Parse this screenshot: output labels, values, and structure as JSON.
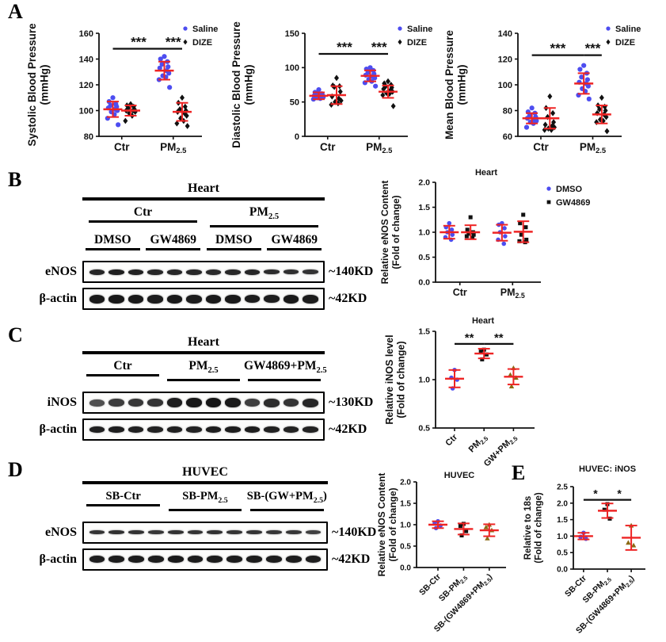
{
  "panels": {
    "A": "A",
    "B": "B",
    "C": "C",
    "D": "D",
    "E": "E"
  },
  "colors": {
    "error_bar": "#ee2424",
    "saline_blue": "#4d4df0",
    "black": "#111111",
    "brown": "#8B6914"
  },
  "chart_data": [
    {
      "id": "c-a1",
      "type": "scatter",
      "title": "",
      "ylabel": [
        "Systolic Blood Pressure",
        "(mmHg)"
      ],
      "ylim": [
        80,
        160
      ],
      "yticks": [
        "80",
        "100",
        "120",
        "140",
        "160"
      ],
      "categories": [
        {
          "label": "Ctr",
          "fr": 0.23
        },
        {
          "label": "PM|2.5",
          "fr": 0.75
        }
      ],
      "legend": [
        {
          "label": "Saline",
          "marker": "circle",
          "color": "#4d4df0"
        },
        {
          "label": "DIZE",
          "marker": "diamond",
          "color": "#111111"
        }
      ],
      "legend_position": "right",
      "grid": false,
      "groups": [
        {
          "cat": 0,
          "off": -0.09,
          "marker": "circle",
          "color": "#4d4df0",
          "values": [
            110,
            107,
            105,
            104,
            103,
            102,
            101,
            100,
            99,
            97,
            94,
            89
          ],
          "mean": 101,
          "sd": 6
        },
        {
          "cat": 0,
          "off": 0.09,
          "marker": "diamond",
          "color": "#111111",
          "values": [
            105,
            104,
            103,
            102,
            101,
            100,
            100,
            99,
            98,
            96,
            92
          ],
          "mean": 100,
          "sd": 4
        },
        {
          "cat": 1,
          "off": -0.09,
          "marker": "circle",
          "color": "#4d4df0",
          "values": [
            142,
            140,
            138,
            136,
            134,
            133,
            131,
            129,
            127,
            126,
            124,
            118
          ],
          "mean": 131,
          "sd": 7
        },
        {
          "cat": 1,
          "off": 0.09,
          "marker": "diamond",
          "color": "#111111",
          "values": [
            110,
            106,
            103,
            101,
            100,
            99,
            98,
            96,
            94,
            92,
            90,
            88
          ],
          "mean": 99,
          "sd": 7
        }
      ],
      "sig": [
        {
          "g1": 0,
          "g2": 2,
          "y": 148,
          "label": "***"
        },
        {
          "g1": 2,
          "g2": 3,
          "y": 148,
          "label": "***"
        }
      ]
    },
    {
      "id": "c-a2",
      "type": "scatter",
      "title": "",
      "ylabel": [
        "Diastolic Blood Pressure",
        "(mmHg)"
      ],
      "ylim": [
        0,
        150
      ],
      "yticks": [
        "0",
        "50",
        "100",
        "150"
      ],
      "categories": [
        {
          "label": "Ctr",
          "fr": 0.23
        },
        {
          "label": "PM|2.5",
          "fr": 0.75
        }
      ],
      "legend": [
        {
          "label": "Saline",
          "marker": "circle",
          "color": "#4d4df0"
        },
        {
          "label": "DIZE",
          "marker": "diamond",
          "color": "#111111"
        }
      ],
      "legend_position": "right",
      "grid": false,
      "groups": [
        {
          "cat": 0,
          "off": -0.09,
          "marker": "circle",
          "color": "#4d4df0",
          "values": [
            68,
            64,
            62,
            61,
            60,
            59,
            58,
            57,
            56,
            55,
            54
          ],
          "mean": 59,
          "sd": 5
        },
        {
          "cat": 0,
          "off": 0.09,
          "marker": "diamond",
          "color": "#111111",
          "values": [
            85,
            74,
            73,
            72,
            65,
            58,
            55,
            52,
            50,
            48,
            46
          ],
          "mean": 60,
          "sd": 13
        },
        {
          "cat": 1,
          "off": -0.09,
          "marker": "circle",
          "color": "#4d4df0",
          "values": [
            100,
            98,
            96,
            93,
            91,
            89,
            87,
            85,
            83,
            80,
            78,
            73
          ],
          "mean": 88,
          "sd": 8
        },
        {
          "cat": 1,
          "off": 0.09,
          "marker": "diamond",
          "color": "#111111",
          "values": [
            80,
            77,
            75,
            73,
            71,
            69,
            67,
            65,
            63,
            62,
            60,
            44
          ],
          "mean": 65,
          "sd": 9
        }
      ],
      "sig": [
        {
          "g1": 0,
          "g2": 2,
          "y": 120,
          "label": "***"
        },
        {
          "g1": 2,
          "g2": 3,
          "y": 120,
          "label": "***"
        }
      ]
    },
    {
      "id": "c-a3",
      "type": "scatter",
      "title": "",
      "ylabel": [
        "Mean Blood Pressure",
        "(mmHg)"
      ],
      "ylim": [
        60,
        140
      ],
      "yticks": [
        "60",
        "80",
        "100",
        "120",
        "140"
      ],
      "categories": [
        {
          "label": "Ctr",
          "fr": 0.23
        },
        {
          "label": "PM|2.5",
          "fr": 0.75
        }
      ],
      "legend": [
        {
          "label": "Saline",
          "marker": "circle",
          "color": "#4d4df0"
        },
        {
          "label": "DIZE",
          "marker": "diamond",
          "color": "#111111"
        }
      ],
      "legend_position": "right",
      "grid": false,
      "groups": [
        {
          "cat": 0,
          "off": -0.09,
          "marker": "circle",
          "color": "#4d4df0",
          "values": [
            82,
            79,
            78,
            76,
            75,
            74,
            73,
            72,
            71,
            70,
            67
          ],
          "mean": 74,
          "sd": 4
        },
        {
          "cat": 0,
          "off": 0.09,
          "marker": "diamond",
          "color": "#111111",
          "values": [
            91,
            82,
            78,
            75,
            71,
            69,
            68,
            67,
            66,
            65,
            65
          ],
          "mean": 74,
          "sd": 8
        },
        {
          "cat": 1,
          "off": -0.09,
          "marker": "circle",
          "color": "#4d4df0",
          "values": [
            115,
            112,
            109,
            106,
            104,
            102,
            101,
            99,
            97,
            95,
            92,
            89
          ],
          "mean": 101,
          "sd": 8
        },
        {
          "cat": 1,
          "off": 0.09,
          "marker": "diamond",
          "color": "#111111",
          "values": [
            90,
            84,
            83,
            81,
            80,
            78,
            77,
            75,
            73,
            72,
            71,
            64
          ],
          "mean": 77,
          "sd": 7
        }
      ],
      "sig": [
        {
          "g1": 0,
          "g2": 2,
          "y": 123,
          "label": "***"
        },
        {
          "g1": 2,
          "g2": 3,
          "y": 123,
          "label": "***"
        }
      ]
    },
    {
      "id": "c-b",
      "type": "scatter",
      "title": "Heart",
      "ylabel": [
        "Relative eNOS Content",
        "(Fold of change)"
      ],
      "ylim": [
        0,
        2
      ],
      "yticks": [
        "0.0",
        "0.5",
        "1.0",
        "1.5",
        "2.0"
      ],
      "categories": [
        {
          "label": "Ctr",
          "fr": 0.24
        },
        {
          "label": "PM|2.5",
          "fr": 0.76
        }
      ],
      "legend": [
        {
          "label": "DMSO",
          "marker": "circle",
          "color": "#4d4df0"
        },
        {
          "label": "GW4869",
          "marker": "square",
          "color": "#111111"
        }
      ],
      "legend_position": "right",
      "grid": false,
      "groups": [
        {
          "cat": 0,
          "off": -0.105,
          "marker": "circle",
          "color": "#4d4df0",
          "values": [
            1.18,
            1.1,
            1.05,
            1.0,
            0.95,
            0.9,
            0.85
          ],
          "mean": 1.0,
          "sd": 0.13
        },
        {
          "cat": 0,
          "off": 0.105,
          "marker": "square",
          "color": "#111111",
          "values": [
            1.3,
            1.05,
            1.0,
            0.97,
            0.95,
            0.92,
            0.89
          ],
          "mean": 1.0,
          "sd": 0.14
        },
        {
          "cat": 1,
          "off": -0.105,
          "marker": "circle",
          "color": "#4d4df0",
          "values": [
            1.18,
            1.15,
            1.08,
            1.0,
            0.92,
            0.85,
            0.77
          ],
          "mean": 0.99,
          "sd": 0.16
        },
        {
          "cat": 1,
          "off": 0.105,
          "marker": "square",
          "color": "#111111",
          "values": [
            1.35,
            1.18,
            1.1,
            0.95,
            0.85,
            0.82,
            0.8
          ],
          "mean": 1.01,
          "sd": 0.21
        }
      ],
      "sig": []
    },
    {
      "id": "c-c",
      "type": "scatter",
      "title": "Heart",
      "ylabel": [
        "Relative iNOS level",
        "(Fold of change)"
      ],
      "ylim": [
        0.5,
        1.5
      ],
      "yticks": [
        "0.5",
        "1.0",
        "1.5"
      ],
      "rotate_xlabels": true,
      "categories": [
        {
          "label": "Ctr",
          "fr": 0.2
        },
        {
          "label": "PM|2.5",
          "fr": 0.51
        },
        {
          "label": "GW+PM|2.5",
          "fr": 0.82
        }
      ],
      "grid": false,
      "groups": [
        {
          "cat": 0,
          "off": 0,
          "marker": "circle",
          "color": "#4d4df0",
          "values": [
            1.1,
            1.02,
            1.0,
            0.91
          ],
          "mean": 1.01,
          "sd": 0.09
        },
        {
          "cat": 1,
          "off": 0,
          "marker": "square",
          "color": "#111111",
          "values": [
            1.31,
            1.29,
            1.26,
            1.21
          ],
          "mean": 1.27,
          "sd": 0.05
        },
        {
          "cat": 2,
          "off": 0,
          "marker": "triangle",
          "color": "#8B6914",
          "values": [
            1.12,
            1.05,
            1.02,
            0.93
          ],
          "mean": 1.03,
          "sd": 0.08
        }
      ],
      "sig": [
        {
          "g1": 0,
          "g2": 1,
          "y": 1.37,
          "label": "**"
        },
        {
          "g1": 1,
          "g2": 2,
          "y": 1.37,
          "label": "**"
        }
      ]
    },
    {
      "id": "c-d",
      "type": "scatter",
      "title": "HUVEC",
      "ylabel": [
        "Relative eNOS Content",
        "(Fold of change)"
      ],
      "ylim": [
        0,
        2
      ],
      "yticks": [
        "0.0",
        "0.5",
        "1.0",
        "1.5",
        "2.0"
      ],
      "rotate_xlabels": true,
      "categories": [
        {
          "label": "SB-Ctr",
          "fr": 0.25
        },
        {
          "label": "SB-PM|2.5",
          "fr": 0.55
        },
        {
          "label": "SB-(GW4869+PM|2.5|)",
          "fr": 0.85
        }
      ],
      "grid": false,
      "groups": [
        {
          "cat": 0,
          "off": 0,
          "marker": "circle",
          "color": "#4d4df0",
          "values": [
            1.08,
            1.04,
            0.98,
            0.92
          ],
          "mean": 1.0,
          "sd": 0.08
        },
        {
          "cat": 1,
          "off": 0,
          "marker": "square",
          "color": "#111111",
          "values": [
            1.02,
            0.97,
            0.85,
            0.75
          ],
          "mean": 0.9,
          "sd": 0.13
        },
        {
          "cat": 2,
          "off": 0,
          "marker": "triangle",
          "color": "#8B6914",
          "values": [
            1.0,
            0.94,
            0.87,
            0.68
          ],
          "mean": 0.87,
          "sd": 0.14
        }
      ],
      "sig": []
    },
    {
      "id": "c-e",
      "type": "scatter",
      "title": "HUVEC: iNOS",
      "ylabel": [
        "Relative to 18s",
        "(Fold of change)"
      ],
      "ylim": [
        0,
        2.5
      ],
      "yticks": [
        "0.0",
        "0.5",
        "1.0",
        "1.5",
        "2.0",
        "2.5"
      ],
      "rotate_xlabels": true,
      "categories": [
        {
          "label": "SB-Ctr",
          "fr": 0.15
        },
        {
          "label": "SB-PM|2.5",
          "fr": 0.5
        },
        {
          "label": "SB-(GW4869+PM|2.5|)",
          "fr": 0.85
        }
      ],
      "grid": false,
      "groups": [
        {
          "cat": 0,
          "off": 0,
          "marker": "circle",
          "color": "#4d4df0",
          "values": [
            1.1,
            0.98,
            0.92
          ],
          "mean": 1.0,
          "sd": 0.1
        },
        {
          "cat": 1,
          "off": 0,
          "marker": "square",
          "color": "#111111",
          "values": [
            1.97,
            1.8,
            1.53
          ],
          "mean": 1.77,
          "sd": 0.22
        },
        {
          "cat": 2,
          "off": 0,
          "marker": "triangle",
          "color": "#8B6914",
          "values": [
            1.32,
            0.8,
            0.72
          ],
          "mean": 0.95,
          "sd": 0.37
        }
      ],
      "sig": [
        {
          "g1": 0,
          "g2": 1,
          "y": 2.1,
          "label": "*"
        },
        {
          "g1": 1,
          "g2": 2,
          "y": 2.1,
          "label": "*"
        }
      ]
    }
  ],
  "blots": [
    {
      "id": "blot-b",
      "title": "Heart",
      "groups": [
        {
          "label": "Ctr",
          "span": 6
        },
        {
          "label": "PM|2.5",
          "span": 6
        }
      ],
      "subgroups": [
        {
          "label": "DMSO",
          "span": 3
        },
        {
          "label": "GW4869",
          "span": 3
        },
        {
          "label": "DMSO",
          "span": 3
        },
        {
          "label": "GW4869",
          "span": 3
        }
      ],
      "rows": [
        {
          "protein": "eNOS",
          "kd": "~140KD",
          "band_h": 6,
          "bands": [
            0.85,
            0.9,
            0.88,
            0.82,
            0.85,
            0.83,
            0.8,
            0.82,
            0.85,
            0.78,
            0.75,
            0.72
          ]
        },
        {
          "protein": "β-actin",
          "kd": "~42KD",
          "band_h": 9,
          "bands": [
            0.95,
            0.97,
            0.96,
            0.94,
            0.95,
            0.94,
            0.96,
            0.95,
            0.93,
            0.92,
            0.95,
            0.94
          ]
        }
      ]
    },
    {
      "id": "blot-c",
      "title": "Heart",
      "groups": [
        {
          "label": "Ctr",
          "span": 4
        },
        {
          "label": "PM|2.5",
          "span": 4
        },
        {
          "label": "GW4869+PM|2.5",
          "span": 4
        }
      ],
      "subgroups": [],
      "rows": [
        {
          "protein": "iNOS",
          "kd": "~130KD",
          "band_h": 10,
          "bands": [
            0.45,
            0.62,
            0.68,
            0.72,
            0.92,
            0.97,
            1.0,
            0.95,
            0.6,
            0.78,
            0.72,
            0.82
          ]
        },
        {
          "protein": "β-actin",
          "kd": "~42KD",
          "band_h": 7,
          "bands": [
            0.88,
            0.9,
            0.89,
            0.87,
            0.88,
            0.87,
            0.9,
            0.91,
            0.9,
            0.88,
            0.87,
            0.86
          ]
        }
      ]
    },
    {
      "id": "blot-d",
      "title": "HUVEC",
      "groups": [
        {
          "label": "SB-Ctr",
          "span": 4
        },
        {
          "label": "SB-PM|2.5",
          "span": 4
        },
        {
          "label": "SB-(GW+PM|2.5|)",
          "span": 4
        }
      ],
      "subgroups": [],
      "rows": [
        {
          "protein": "eNOS",
          "kd": "~140KD",
          "band_h": 5,
          "bands": [
            0.72,
            0.75,
            0.73,
            0.7,
            0.74,
            0.72,
            0.73,
            0.71,
            0.72,
            0.7,
            0.68,
            0.6
          ]
        },
        {
          "protein": "β-actin",
          "kd": "~42KD",
          "band_h": 8,
          "bands": [
            0.92,
            0.94,
            0.93,
            0.91,
            0.95,
            0.94,
            0.93,
            0.94,
            0.93,
            0.92,
            0.93,
            0.92
          ]
        }
      ]
    }
  ]
}
